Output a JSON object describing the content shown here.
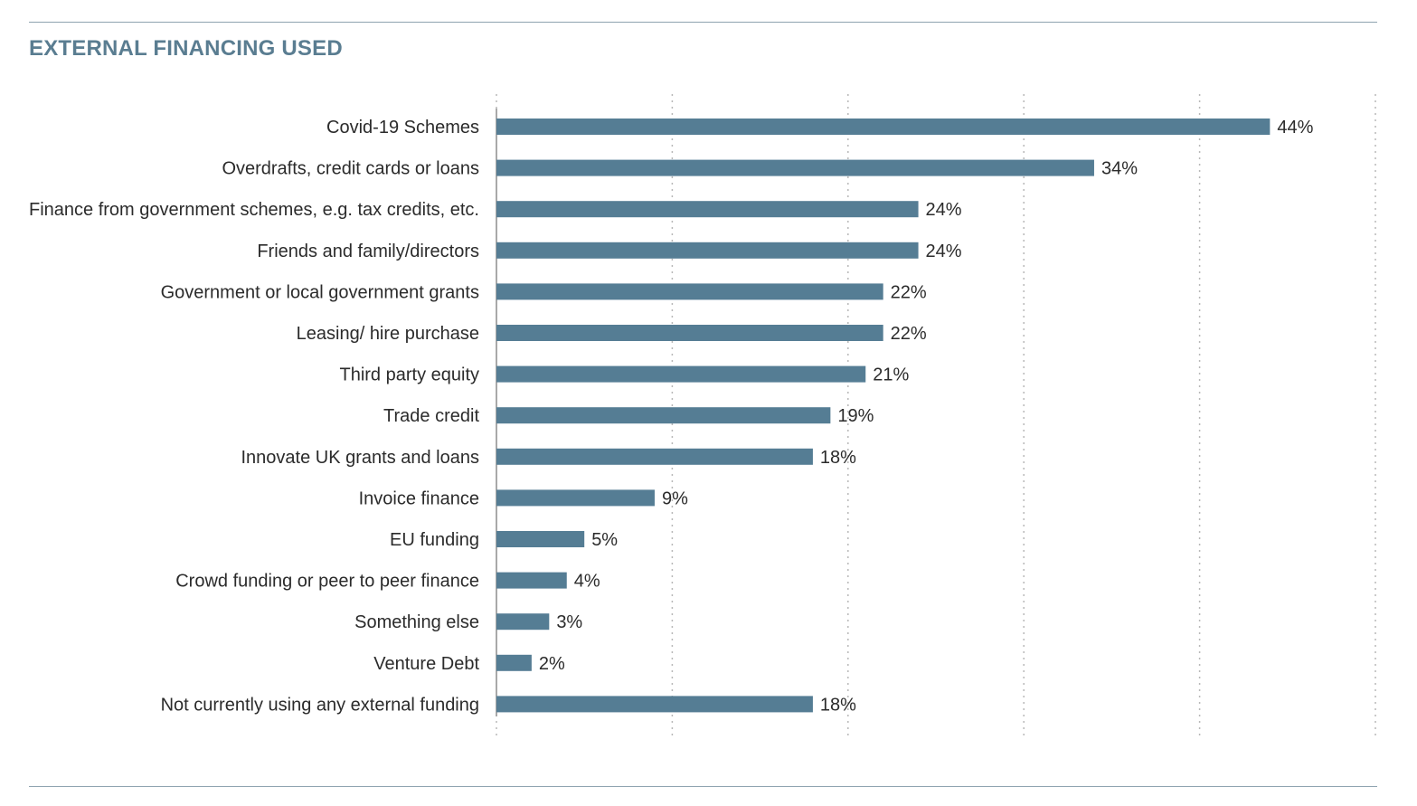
{
  "chart_data": {
    "type": "bar",
    "orientation": "horizontal",
    "title": "EXTERNAL FINANCING USED",
    "categories": [
      "Covid-19 Schemes",
      "Overdrafts, credit cards or loans",
      "Finance from government schemes, e.g. tax credits, etc.",
      "Friends and family/directors",
      "Government or local government grants",
      "Leasing/ hire purchase",
      "Third party equity",
      "Trade credit",
      "Innovate UK grants and loans",
      "Invoice finance",
      "EU funding",
      "Crowd funding or peer to peer finance",
      "Something else",
      "Venture Debt",
      "Not currently using any external funding"
    ],
    "values": [
      44,
      34,
      24,
      24,
      22,
      22,
      21,
      19,
      18,
      9,
      5,
      4,
      3,
      2,
      18
    ],
    "value_labels": [
      "44%",
      "34%",
      "24%",
      "24%",
      "22%",
      "22%",
      "21%",
      "19%",
      "18%",
      "9%",
      "5%",
      "4%",
      "3%",
      "2%",
      "18%"
    ],
    "xlim": [
      0,
      50
    ],
    "grid": "vertical dotted",
    "legend": "none",
    "bar_color": "#557d94",
    "grid_color": "#b8b8b8",
    "axis_color": "#a9a9a9",
    "title_color": "#5a7d91"
  }
}
